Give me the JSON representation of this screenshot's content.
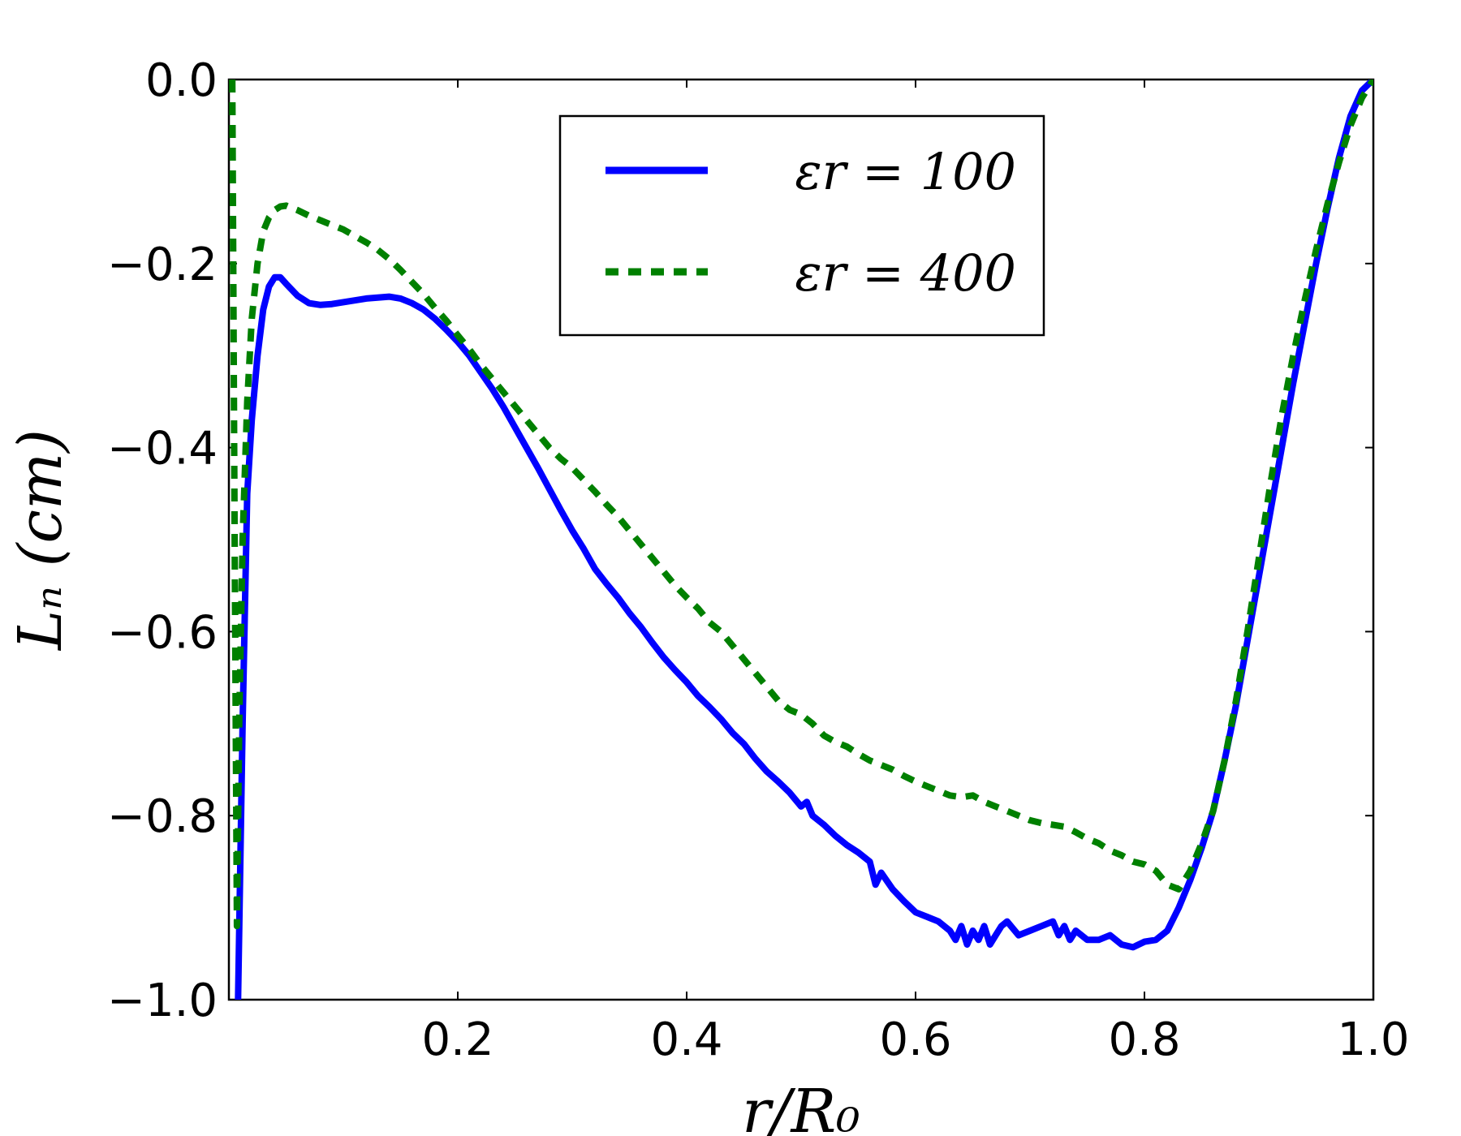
{
  "chart_data": {
    "type": "line",
    "title": "",
    "xlabel": "r/R₀",
    "ylabel": "Lₙ (cm)",
    "xlim": [
      0.0,
      1.0
    ],
    "ylim": [
      -1.0,
      0.0
    ],
    "x_ticks": [
      0.2,
      0.4,
      0.6,
      0.8,
      1.0
    ],
    "x_tick_labels": [
      "0.2",
      "0.4",
      "0.6",
      "0.8",
      "1.0"
    ],
    "y_ticks": [
      0.0,
      -0.2,
      -0.4,
      -0.6,
      -0.8,
      -1.0
    ],
    "y_tick_labels": [
      "0.0",
      "−0.2",
      "−0.4",
      "−0.6",
      "−0.8",
      "−1.0"
    ],
    "grid": false,
    "legend_position": "top-center",
    "series": [
      {
        "name": "εr = 100",
        "color": "#0000ff",
        "style": "solid",
        "points": [
          [
            0.008,
            -1.0
          ],
          [
            0.012,
            -0.7
          ],
          [
            0.016,
            -0.45
          ],
          [
            0.02,
            -0.37
          ],
          [
            0.025,
            -0.3
          ],
          [
            0.03,
            -0.25
          ],
          [
            0.035,
            -0.225
          ],
          [
            0.04,
            -0.215
          ],
          [
            0.045,
            -0.215
          ],
          [
            0.05,
            -0.222
          ],
          [
            0.06,
            -0.235
          ],
          [
            0.07,
            -0.243
          ],
          [
            0.08,
            -0.245
          ],
          [
            0.09,
            -0.244
          ],
          [
            0.1,
            -0.242
          ],
          [
            0.11,
            -0.24
          ],
          [
            0.12,
            -0.238
          ],
          [
            0.13,
            -0.237
          ],
          [
            0.14,
            -0.236
          ],
          [
            0.15,
            -0.238
          ],
          [
            0.16,
            -0.243
          ],
          [
            0.17,
            -0.25
          ],
          [
            0.18,
            -0.26
          ],
          [
            0.19,
            -0.272
          ],
          [
            0.2,
            -0.285
          ],
          [
            0.21,
            -0.3
          ],
          [
            0.22,
            -0.318
          ],
          [
            0.23,
            -0.336
          ],
          [
            0.24,
            -0.356
          ],
          [
            0.25,
            -0.378
          ],
          [
            0.26,
            -0.4
          ],
          [
            0.27,
            -0.422
          ],
          [
            0.28,
            -0.445
          ],
          [
            0.29,
            -0.468
          ],
          [
            0.3,
            -0.49
          ],
          [
            0.31,
            -0.51
          ],
          [
            0.32,
            -0.532
          ],
          [
            0.33,
            -0.548
          ],
          [
            0.34,
            -0.563
          ],
          [
            0.35,
            -0.58
          ],
          [
            0.36,
            -0.595
          ],
          [
            0.37,
            -0.612
          ],
          [
            0.38,
            -0.628
          ],
          [
            0.39,
            -0.642
          ],
          [
            0.4,
            -0.655
          ],
          [
            0.41,
            -0.67
          ],
          [
            0.42,
            -0.682
          ],
          [
            0.43,
            -0.695
          ],
          [
            0.44,
            -0.71
          ],
          [
            0.45,
            -0.722
          ],
          [
            0.46,
            -0.738
          ],
          [
            0.47,
            -0.752
          ],
          [
            0.48,
            -0.763
          ],
          [
            0.49,
            -0.775
          ],
          [
            0.5,
            -0.79
          ],
          [
            0.505,
            -0.785
          ],
          [
            0.51,
            -0.8
          ],
          [
            0.52,
            -0.81
          ],
          [
            0.53,
            -0.822
          ],
          [
            0.54,
            -0.832
          ],
          [
            0.55,
            -0.84
          ],
          [
            0.56,
            -0.85
          ],
          [
            0.565,
            -0.875
          ],
          [
            0.57,
            -0.862
          ],
          [
            0.58,
            -0.88
          ],
          [
            0.59,
            -0.893
          ],
          [
            0.6,
            -0.905
          ],
          [
            0.61,
            -0.91
          ],
          [
            0.62,
            -0.915
          ],
          [
            0.63,
            -0.925
          ],
          [
            0.635,
            -0.935
          ],
          [
            0.64,
            -0.92
          ],
          [
            0.645,
            -0.94
          ],
          [
            0.65,
            -0.925
          ],
          [
            0.655,
            -0.935
          ],
          [
            0.66,
            -0.92
          ],
          [
            0.665,
            -0.94
          ],
          [
            0.67,
            -0.93
          ],
          [
            0.675,
            -0.92
          ],
          [
            0.68,
            -0.915
          ],
          [
            0.69,
            -0.93
          ],
          [
            0.7,
            -0.925
          ],
          [
            0.71,
            -0.92
          ],
          [
            0.72,
            -0.915
          ],
          [
            0.725,
            -0.93
          ],
          [
            0.73,
            -0.92
          ],
          [
            0.735,
            -0.935
          ],
          [
            0.74,
            -0.925
          ],
          [
            0.75,
            -0.935
          ],
          [
            0.76,
            -0.935
          ],
          [
            0.77,
            -0.93
          ],
          [
            0.78,
            -0.94
          ],
          [
            0.79,
            -0.943
          ],
          [
            0.8,
            -0.937
          ],
          [
            0.81,
            -0.935
          ],
          [
            0.82,
            -0.925
          ],
          [
            0.83,
            -0.9
          ],
          [
            0.84,
            -0.87
          ],
          [
            0.85,
            -0.835
          ],
          [
            0.86,
            -0.795
          ],
          [
            0.87,
            -0.74
          ],
          [
            0.88,
            -0.68
          ],
          [
            0.89,
            -0.61
          ],
          [
            0.9,
            -0.54
          ],
          [
            0.91,
            -0.47
          ],
          [
            0.92,
            -0.4
          ],
          [
            0.93,
            -0.33
          ],
          [
            0.94,
            -0.265
          ],
          [
            0.95,
            -0.2
          ],
          [
            0.96,
            -0.14
          ],
          [
            0.97,
            -0.085
          ],
          [
            0.98,
            -0.04
          ],
          [
            0.99,
            -0.012
          ],
          [
            1.0,
            0.0
          ]
        ]
      },
      {
        "name": "εr = 400",
        "color": "#008000",
        "style": "dashed",
        "points": [
          [
            0.003,
            0.0
          ],
          [
            0.005,
            -0.5
          ],
          [
            0.007,
            -0.92
          ],
          [
            0.009,
            -0.7
          ],
          [
            0.012,
            -0.5
          ],
          [
            0.016,
            -0.35
          ],
          [
            0.02,
            -0.26
          ],
          [
            0.025,
            -0.2
          ],
          [
            0.03,
            -0.165
          ],
          [
            0.035,
            -0.15
          ],
          [
            0.04,
            -0.142
          ],
          [
            0.045,
            -0.138
          ],
          [
            0.05,
            -0.137
          ],
          [
            0.06,
            -0.142
          ],
          [
            0.07,
            -0.148
          ],
          [
            0.08,
            -0.153
          ],
          [
            0.09,
            -0.158
          ],
          [
            0.1,
            -0.163
          ],
          [
            0.11,
            -0.17
          ],
          [
            0.12,
            -0.177
          ],
          [
            0.13,
            -0.185
          ],
          [
            0.14,
            -0.195
          ],
          [
            0.15,
            -0.207
          ],
          [
            0.16,
            -0.22
          ],
          [
            0.17,
            -0.233
          ],
          [
            0.18,
            -0.248
          ],
          [
            0.19,
            -0.262
          ],
          [
            0.2,
            -0.278
          ],
          [
            0.21,
            -0.293
          ],
          [
            0.22,
            -0.31
          ],
          [
            0.23,
            -0.325
          ],
          [
            0.24,
            -0.34
          ],
          [
            0.25,
            -0.355
          ],
          [
            0.26,
            -0.37
          ],
          [
            0.27,
            -0.385
          ],
          [
            0.28,
            -0.4
          ],
          [
            0.29,
            -0.412
          ],
          [
            0.3,
            -0.422
          ],
          [
            0.31,
            -0.435
          ],
          [
            0.32,
            -0.448
          ],
          [
            0.33,
            -0.462
          ],
          [
            0.34,
            -0.475
          ],
          [
            0.35,
            -0.49
          ],
          [
            0.36,
            -0.505
          ],
          [
            0.37,
            -0.52
          ],
          [
            0.38,
            -0.535
          ],
          [
            0.39,
            -0.55
          ],
          [
            0.4,
            -0.563
          ],
          [
            0.41,
            -0.575
          ],
          [
            0.42,
            -0.59
          ],
          [
            0.43,
            -0.6
          ],
          [
            0.44,
            -0.615
          ],
          [
            0.45,
            -0.63
          ],
          [
            0.46,
            -0.645
          ],
          [
            0.47,
            -0.66
          ],
          [
            0.48,
            -0.675
          ],
          [
            0.49,
            -0.685
          ],
          [
            0.5,
            -0.69
          ],
          [
            0.51,
            -0.7
          ],
          [
            0.52,
            -0.713
          ],
          [
            0.53,
            -0.72
          ],
          [
            0.54,
            -0.725
          ],
          [
            0.55,
            -0.733
          ],
          [
            0.56,
            -0.74
          ],
          [
            0.57,
            -0.745
          ],
          [
            0.58,
            -0.75
          ],
          [
            0.59,
            -0.757
          ],
          [
            0.6,
            -0.763
          ],
          [
            0.61,
            -0.768
          ],
          [
            0.62,
            -0.773
          ],
          [
            0.63,
            -0.778
          ],
          [
            0.64,
            -0.78
          ],
          [
            0.65,
            -0.778
          ],
          [
            0.66,
            -0.785
          ],
          [
            0.67,
            -0.79
          ],
          [
            0.68,
            -0.795
          ],
          [
            0.69,
            -0.8
          ],
          [
            0.7,
            -0.805
          ],
          [
            0.71,
            -0.808
          ],
          [
            0.72,
            -0.81
          ],
          [
            0.73,
            -0.812
          ],
          [
            0.74,
            -0.818
          ],
          [
            0.75,
            -0.825
          ],
          [
            0.76,
            -0.83
          ],
          [
            0.77,
            -0.838
          ],
          [
            0.78,
            -0.843
          ],
          [
            0.79,
            -0.85
          ],
          [
            0.8,
            -0.853
          ],
          [
            0.81,
            -0.86
          ],
          [
            0.82,
            -0.875
          ],
          [
            0.83,
            -0.88
          ],
          [
            0.84,
            -0.86
          ],
          [
            0.85,
            -0.83
          ],
          [
            0.86,
            -0.795
          ],
          [
            0.87,
            -0.74
          ],
          [
            0.88,
            -0.675
          ],
          [
            0.89,
            -0.6
          ],
          [
            0.9,
            -0.52
          ],
          [
            0.91,
            -0.44
          ],
          [
            0.92,
            -0.365
          ],
          [
            0.93,
            -0.3
          ],
          [
            0.94,
            -0.24
          ],
          [
            0.95,
            -0.185
          ],
          [
            0.96,
            -0.135
          ],
          [
            0.97,
            -0.09
          ],
          [
            0.98,
            -0.05
          ],
          [
            0.99,
            -0.02
          ],
          [
            1.0,
            0.0
          ]
        ]
      }
    ]
  }
}
